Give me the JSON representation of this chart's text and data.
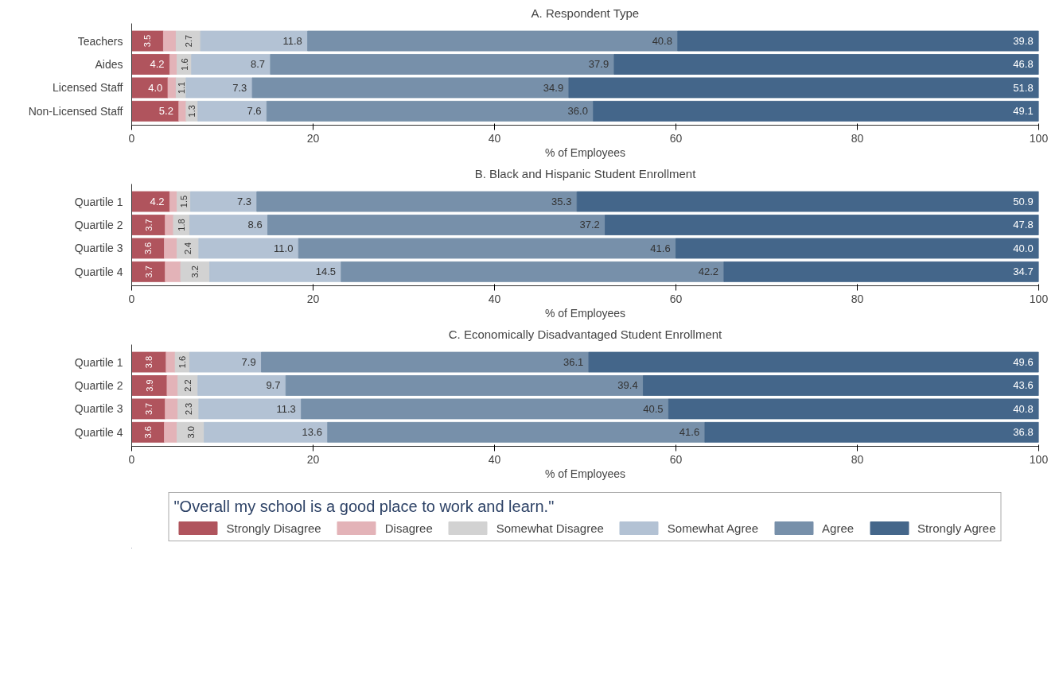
{
  "chart_data": [
    {
      "type": "bar",
      "orientation": "horizontal",
      "stacked": true,
      "title": "A. Respondent Type",
      "xlabel": "% of Employees",
      "categories": [
        "Teachers",
        "Aides",
        "Licensed Staff",
        "Non-Licensed Staff"
      ],
      "xlim": [
        0,
        100
      ],
      "xticks": [
        0,
        20,
        40,
        60,
        80,
        100
      ],
      "grid": false,
      "legend": false,
      "series": [
        {
          "color": "#b0545d",
          "values": [
            3.5,
            4.2,
            4.0,
            5.2
          ],
          "value_labels": [
            "3.5",
            "4.2",
            "4.0",
            "5.2"
          ]
        },
        {
          "color": "#e3b3b8",
          "values": [
            1.4,
            0.8,
            0.9,
            0.8
          ],
          "value_labels": [
            null,
            null,
            null,
            null
          ]
        },
        {
          "color": "#d2d2d2",
          "values": [
            2.7,
            1.6,
            1.1,
            1.3
          ],
          "value_labels": [
            "2.7",
            "1.6",
            "1.1",
            "1.3"
          ]
        },
        {
          "color": "#b3c2d4",
          "values": [
            11.8,
            8.7,
            7.3,
            7.6
          ],
          "value_labels": [
            "11.8",
            "8.7",
            "7.3",
            "7.6"
          ]
        },
        {
          "color": "#7790aa",
          "values": [
            40.8,
            37.9,
            34.9,
            36.0
          ],
          "value_labels": [
            "40.8",
            "37.9",
            "34.9",
            "36.0"
          ]
        },
        {
          "color": "#44668a",
          "values": [
            39.8,
            46.8,
            51.8,
            49.1
          ],
          "value_labels": [
            "39.8",
            "46.8",
            "51.8",
            "49.1"
          ]
        }
      ]
    },
    {
      "type": "bar",
      "orientation": "horizontal",
      "stacked": true,
      "title": "B. Black and Hispanic Student Enrollment",
      "xlabel": "% of Employees",
      "categories": [
        "Quartile 1",
        "Quartile 2",
        "Quartile 3",
        "Quartile 4"
      ],
      "xlim": [
        0,
        100
      ],
      "xticks": [
        0,
        20,
        40,
        60,
        80,
        100
      ],
      "grid": false,
      "legend": false,
      "series": [
        {
          "color": "#b0545d",
          "values": [
            4.2,
            3.7,
            3.6,
            3.7
          ],
          "value_labels": [
            "4.2",
            "3.7",
            "3.6",
            "3.7"
          ]
        },
        {
          "color": "#e3b3b8",
          "values": [
            0.8,
            0.9,
            1.4,
            1.7
          ],
          "value_labels": [
            null,
            null,
            null,
            null
          ]
        },
        {
          "color": "#d2d2d2",
          "values": [
            1.5,
            1.8,
            2.4,
            3.2
          ],
          "value_labels": [
            "1.5",
            "1.8",
            "2.4",
            "3.2"
          ]
        },
        {
          "color": "#b3c2d4",
          "values": [
            7.3,
            8.6,
            11.0,
            14.5
          ],
          "value_labels": [
            "7.3",
            "8.6",
            "11.0",
            "14.5"
          ]
        },
        {
          "color": "#7790aa",
          "values": [
            35.3,
            37.2,
            41.6,
            42.2
          ],
          "value_labels": [
            "35.3",
            "37.2",
            "41.6",
            "42.2"
          ]
        },
        {
          "color": "#44668a",
          "values": [
            50.9,
            47.8,
            40.0,
            34.7
          ],
          "value_labels": [
            "50.9",
            "47.8",
            "40.0",
            "34.7"
          ]
        }
      ]
    },
    {
      "type": "bar",
      "orientation": "horizontal",
      "stacked": true,
      "title": "C. Economically Disadvantaged Student Enrollment",
      "xlabel": "% of Employees",
      "categories": [
        "Quartile 1",
        "Quartile 2",
        "Quartile 3",
        "Quartile 4"
      ],
      "xlim": [
        0,
        100
      ],
      "xticks": [
        0,
        20,
        40,
        60,
        80,
        100
      ],
      "grid": false,
      "legend": "bottom",
      "legend_title": "\"Overall my school is a good place to work and learn.\"",
      "series": [
        {
          "name": "Strongly Disagree",
          "color": "#b0545d",
          "values": [
            3.8,
            3.9,
            3.7,
            3.6
          ],
          "value_labels": [
            "3.8",
            "3.9",
            "3.7",
            "3.6"
          ]
        },
        {
          "name": "Disagree",
          "color": "#e3b3b8",
          "values": [
            1.0,
            1.2,
            1.4,
            1.4
          ],
          "value_labels": [
            null,
            null,
            null,
            null
          ]
        },
        {
          "name": "Somewhat Disagree",
          "color": "#d2d2d2",
          "values": [
            1.6,
            2.2,
            2.3,
            3.0
          ],
          "value_labels": [
            "1.6",
            "2.2",
            "2.3",
            "3.0"
          ]
        },
        {
          "name": "Somewhat Agree",
          "color": "#b3c2d4",
          "values": [
            7.9,
            9.7,
            11.3,
            13.6
          ],
          "value_labels": [
            "7.9",
            "9.7",
            "11.3",
            "13.6"
          ]
        },
        {
          "name": "Agree",
          "color": "#7790aa",
          "values": [
            36.1,
            39.4,
            40.5,
            41.6
          ],
          "value_labels": [
            "36.1",
            "39.4",
            "40.5",
            "41.6"
          ]
        },
        {
          "name": "Strongly Agree",
          "color": "#44668a",
          "values": [
            49.6,
            43.6,
            40.8,
            36.8
          ],
          "value_labels": [
            "49.6",
            "43.6",
            "40.8",
            "36.8"
          ]
        }
      ]
    }
  ]
}
